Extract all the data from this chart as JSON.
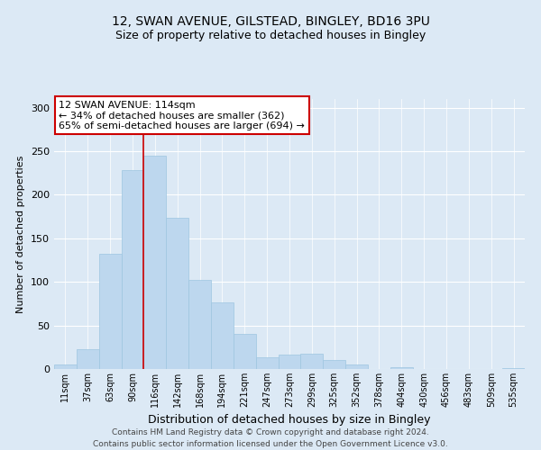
{
  "title_line1": "12, SWAN AVENUE, GILSTEAD, BINGLEY, BD16 3PU",
  "title_line2": "Size of property relative to detached houses in Bingley",
  "xlabel": "Distribution of detached houses by size in Bingley",
  "ylabel": "Number of detached properties",
  "bar_labels": [
    "11sqm",
    "37sqm",
    "63sqm",
    "90sqm",
    "116sqm",
    "142sqm",
    "168sqm",
    "194sqm",
    "221sqm",
    "247sqm",
    "273sqm",
    "299sqm",
    "325sqm",
    "352sqm",
    "378sqm",
    "404sqm",
    "430sqm",
    "456sqm",
    "483sqm",
    "509sqm",
    "535sqm"
  ],
  "bar_values": [
    5,
    23,
    132,
    228,
    245,
    174,
    102,
    76,
    40,
    13,
    17,
    18,
    10,
    5,
    0,
    2,
    0,
    0,
    0,
    0,
    1
  ],
  "bar_color": "#bdd7ee",
  "bar_edge_color": "#9ec6e0",
  "vline_index": 4,
  "vline_color": "#cc0000",
  "ylim": [
    0,
    310
  ],
  "yticks": [
    0,
    50,
    100,
    150,
    200,
    250,
    300
  ],
  "annotation_title": "12 SWAN AVENUE: 114sqm",
  "annotation_line1": "← 34% of detached houses are smaller (362)",
  "annotation_line2": "65% of semi-detached houses are larger (694) →",
  "annotation_box_facecolor": "#ffffff",
  "annotation_box_edgecolor": "#cc0000",
  "footer_line1": "Contains HM Land Registry data © Crown copyright and database right 2024.",
  "footer_line2": "Contains public sector information licensed under the Open Government Licence v3.0.",
  "bg_color": "#dce9f5",
  "grid_color": "#ffffff",
  "title1_fontsize": 10,
  "title2_fontsize": 9,
  "xlabel_fontsize": 9,
  "ylabel_fontsize": 8,
  "tick_fontsize": 7,
  "footer_fontsize": 6.5
}
